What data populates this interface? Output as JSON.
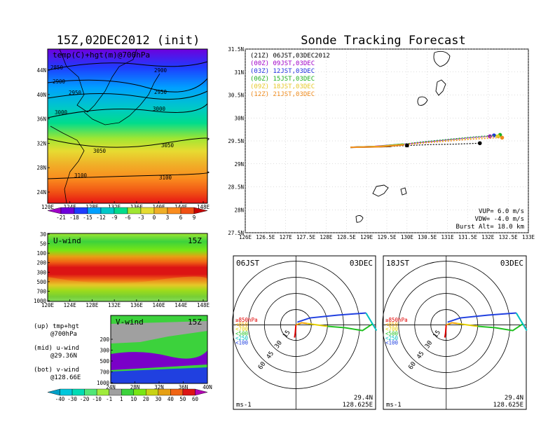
{
  "panels": {
    "left_title": "15Z,02DEC2012 (init)",
    "right_title": "Sonde Tracking Forecast"
  },
  "chart_data": [
    {
      "type": "heatmap",
      "label": "temp(C)+hgt(m)@700hPa",
      "x_ticks": [
        "120E",
        "124E",
        "128E",
        "132E",
        "136E",
        "140E",
        "144E",
        "148E"
      ],
      "y_ticks": [
        "44N",
        "40N",
        "36N",
        "32N",
        "28N",
        "24N"
      ],
      "contours": [
        {
          "label": "2850"
        },
        {
          "label": "2900"
        },
        {
          "label": "2900"
        },
        {
          "label": "2950"
        },
        {
          "label": "2950"
        },
        {
          "label": "3000"
        },
        {
          "label": "3000"
        },
        {
          "label": "3050"
        },
        {
          "label": "3050"
        },
        {
          "label": "3100"
        },
        {
          "label": "3100"
        }
      ],
      "colorbar": {
        "labels": [
          "-21",
          "-18",
          "-15",
          "-12",
          "-9",
          "-6",
          "-3",
          "0",
          "3",
          "6",
          "9"
        ],
        "colors": [
          "#a000c8",
          "#6e00dc",
          "#1e3cff",
          "#00a0ff",
          "#00c8c8",
          "#00dc8c",
          "#a0e632",
          "#e6dc32",
          "#f0af28",
          "#fa8c1e",
          "#f05014",
          "#c80000"
        ]
      }
    },
    {
      "type": "heatmap",
      "label": "U-wind",
      "time_label": "15Z",
      "x_ticks": [
        "120E",
        "124E",
        "128E",
        "132E",
        "136E",
        "140E",
        "144E",
        "148E"
      ],
      "y_ticks": [
        "30",
        "50",
        "100",
        "200",
        "300",
        "500",
        "700",
        "1000"
      ]
    },
    {
      "type": "heatmap",
      "label": "V-wind",
      "time_label": "15Z",
      "x_ticks": [
        "24N",
        "28N",
        "32N",
        "36N",
        "40N"
      ],
      "y_ticks": [
        "200",
        "300",
        "500",
        "700",
        "1000"
      ],
      "colorbar": {
        "labels": [
          "-40",
          "-30",
          "-20",
          "-10",
          "-1",
          "1",
          "10",
          "20",
          "30",
          "40",
          "50",
          "60"
        ],
        "colors": [
          "#00a0c8",
          "#00c8dc",
          "#00dcb4",
          "#50e678",
          "#a0eb3c",
          "#a0a0a0",
          "#3cd23c",
          "#78e614",
          "#c8d214",
          "#e6a014",
          "#f06414",
          "#dc1414",
          "#b400b4"
        ]
      }
    },
    {
      "type": "line",
      "title": "Sonde Tracking Forecast",
      "x_ticks": [
        "126E",
        "126.5E",
        "127E",
        "127.5E",
        "128E",
        "128.5E",
        "129E",
        "129.5E",
        "130E",
        "130.5E",
        "131E",
        "131.5E",
        "132E",
        "132.5E",
        "133E"
      ],
      "y_ticks": [
        "27.5N",
        "28N",
        "28.5N",
        "29N",
        "29.5N",
        "30N",
        "30.5N",
        "31N",
        "31.5N"
      ],
      "xlim": [
        126,
        133
      ],
      "ylim": [
        27.5,
        31.5
      ],
      "series": [
        {
          "name": "(21Z) 06JST,03DEC2012",
          "color": "#000000",
          "x": [
            128.6,
            129.2,
            129.6,
            130.0,
            130.6,
            131.2,
            131.8
          ],
          "y": [
            29.36,
            29.37,
            29.38,
            29.4,
            29.42,
            29.43,
            29.45
          ]
        },
        {
          "name": "(00Z) 09JST,03DEC",
          "color": "#a000c8",
          "x": [
            128.6,
            129.2,
            129.8,
            130.4,
            131.0,
            131.6,
            132.05
          ],
          "y": [
            29.36,
            29.38,
            29.42,
            29.47,
            29.52,
            29.57,
            29.6
          ]
        },
        {
          "name": "(03Z) 12JST,03DEC",
          "color": "#2030e0",
          "x": [
            128.6,
            129.3,
            129.9,
            130.5,
            131.1,
            131.7,
            132.15
          ],
          "y": [
            29.36,
            29.38,
            29.43,
            29.49,
            29.54,
            29.59,
            29.62
          ]
        },
        {
          "name": "(06Z) 15JST,03DEC",
          "color": "#20b020",
          "x": [
            128.6,
            129.3,
            129.9,
            130.5,
            131.1,
            131.7,
            132.3
          ],
          "y": [
            29.36,
            29.38,
            29.43,
            29.49,
            29.54,
            29.59,
            29.63
          ]
        },
        {
          "name": "(09Z) 18JST,03DEC",
          "color": "#e6c828",
          "x": [
            128.6,
            129.3,
            129.9,
            130.5,
            131.1,
            131.7,
            132.25
          ],
          "y": [
            29.36,
            29.38,
            29.42,
            29.47,
            29.52,
            29.56,
            29.6
          ]
        },
        {
          "name": "(12Z) 21JST,03DEC",
          "color": "#f08c1e",
          "x": [
            128.6,
            129.3,
            129.9,
            130.5,
            131.1,
            131.7,
            132.35
          ],
          "y": [
            29.36,
            29.37,
            29.41,
            29.46,
            29.5,
            29.54,
            29.57
          ]
        }
      ],
      "annotations": [
        "VUP= 6.0 m/s",
        "VDW= -4.0 m/s",
        "Burst Alt= 18.0 km"
      ]
    },
    {
      "type": "scatter",
      "label": "06JST",
      "date": "03DEC",
      "ring_labels": [
        "15",
        "30",
        "45",
        "60"
      ],
      "units": "ms-1",
      "location": [
        "29.4N",
        "128.625E"
      ],
      "levels": [
        {
          "name": "≥850hPa",
          "color": "#e00000"
        },
        {
          "name": "<850",
          "color": "#f0a000"
        },
        {
          "name": "<700",
          "color": "#e6d000"
        },
        {
          "name": "<500",
          "color": "#20c020"
        },
        {
          "name": "<250",
          "color": "#00c0c0"
        },
        {
          "name": "<100",
          "color": "#2040e0"
        }
      ]
    },
    {
      "type": "scatter",
      "label": "18JST",
      "date": "03DEC",
      "ring_labels": [
        "15",
        "30",
        "45",
        "60"
      ],
      "units": "ms-1",
      "location": [
        "29.4N",
        "128.625E"
      ],
      "levels": [
        {
          "name": "≥850hPa",
          "color": "#e00000"
        },
        {
          "name": "<850",
          "color": "#f0a000"
        },
        {
          "name": "<700",
          "color": "#e6d000"
        },
        {
          "name": "<500",
          "color": "#20c020"
        },
        {
          "name": "<250",
          "color": "#00c0c0"
        },
        {
          "name": "<100",
          "color": "#2040e0"
        }
      ]
    }
  ],
  "legend_notes": [
    {
      "line1": "(up) tmp+hgt",
      "line2": "@700hPa"
    },
    {
      "line1": "(mid) u-wind",
      "line2": "@29.36N"
    },
    {
      "line1": "(bot) v-wind",
      "line2": "@128.66E"
    }
  ]
}
